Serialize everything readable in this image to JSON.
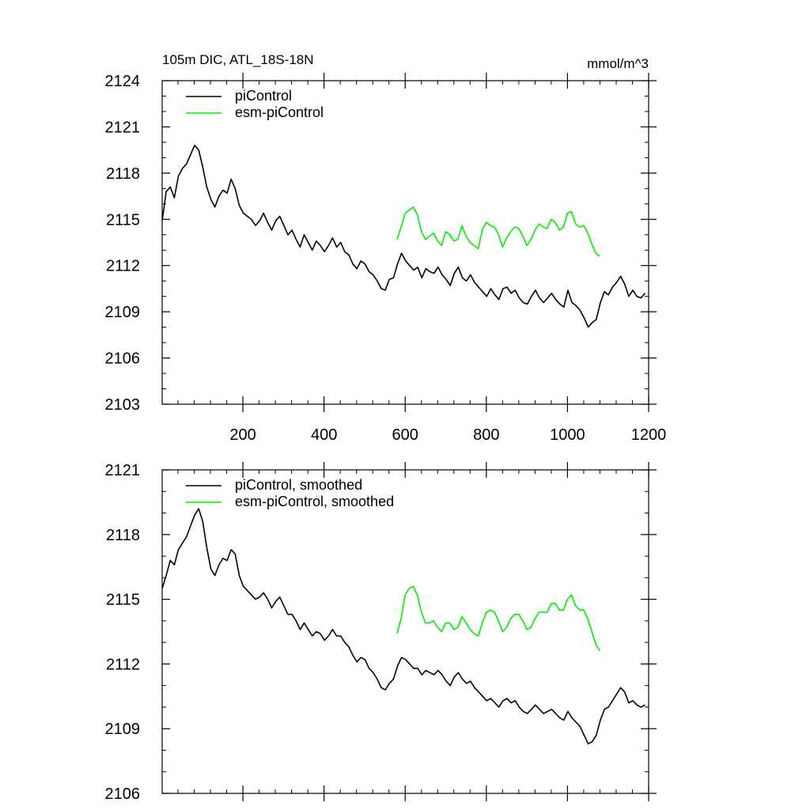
{
  "title": "105m DIC, ATL_18S-18N",
  "units": "mmol/m^3",
  "colors": {
    "piControl": "#000000",
    "esm_piControl": "#00ee00"
  },
  "chart_data": [
    {
      "type": "line",
      "title": "105m DIC, ATL_18S-18N",
      "units_label": "mmol/m^3",
      "xlim": [
        1,
        1200
      ],
      "ylim": [
        2103,
        2124
      ],
      "x_ticks": [
        200,
        400,
        600,
        800,
        1000,
        1200
      ],
      "y_ticks": [
        2103,
        2106,
        2109,
        2112,
        2115,
        2118,
        2121,
        2124
      ],
      "legend_position": "top-left",
      "grid": false,
      "series": [
        {
          "name": "piControl",
          "color": "#000000",
          "x_start": 1,
          "x_step": 10,
          "values": [
            2114.9,
            2116.8,
            2117.1,
            2116.4,
            2117.8,
            2118.3,
            2118.6,
            2119.2,
            2119.8,
            2119.5,
            2118.4,
            2117.1,
            2116.3,
            2115.8,
            2116.5,
            2116.9,
            2116.7,
            2117.6,
            2117.0,
            2115.9,
            2115.4,
            2115.2,
            2115.0,
            2114.6,
            2114.9,
            2115.4,
            2114.8,
            2114.3,
            2114.9,
            2115.2,
            2114.6,
            2114.0,
            2114.3,
            2113.7,
            2113.2,
            2114.0,
            2113.5,
            2113.0,
            2113.6,
            2113.3,
            2112.9,
            2113.3,
            2113.8,
            2113.2,
            2113.5,
            2112.9,
            2112.7,
            2112.1,
            2111.8,
            2112.3,
            2112.1,
            2111.6,
            2111.4,
            2111.0,
            2110.5,
            2110.4,
            2111.1,
            2111.2,
            2112.1,
            2112.8,
            2112.3,
            2112.0,
            2111.7,
            2111.9,
            2111.2,
            2111.8,
            2111.6,
            2111.5,
            2111.9,
            2111.4,
            2111.1,
            2110.7,
            2111.5,
            2111.9,
            2111.2,
            2111.0,
            2111.4,
            2110.9,
            2110.6,
            2110.3,
            2110.0,
            2110.5,
            2110.1,
            2109.8,
            2110.5,
            2110.6,
            2110.2,
            2110.4,
            2109.9,
            2109.6,
            2109.5,
            2110.0,
            2110.4,
            2109.9,
            2109.6,
            2109.9,
            2110.2,
            2109.8,
            2109.5,
            2109.3,
            2110.4,
            2109.6,
            2109.4,
            2109.1,
            2108.6,
            2108.0,
            2108.3,
            2108.5,
            2109.6,
            2110.3,
            2110.1,
            2110.6,
            2110.9,
            2111.3,
            2110.8,
            2110.0,
            2110.4,
            2110.0,
            2109.9,
            2110.2
          ]
        },
        {
          "name": "esm-piControl",
          "color": "#00ee00",
          "x_start": 580,
          "x_step": 10,
          "values": [
            2113.7,
            2114.5,
            2115.4,
            2115.6,
            2115.8,
            2115.3,
            2114.2,
            2113.7,
            2113.9,
            2114.1,
            2113.6,
            2113.3,
            2114.2,
            2114.0,
            2113.6,
            2113.7,
            2114.6,
            2113.9,
            2113.5,
            2113.3,
            2113.1,
            2114.3,
            2114.8,
            2114.6,
            2114.5,
            2114.0,
            2113.2,
            2113.8,
            2114.2,
            2114.5,
            2114.4,
            2113.9,
            2113.3,
            2113.7,
            2114.3,
            2114.7,
            2114.5,
            2114.4,
            2115.0,
            2114.8,
            2114.3,
            2114.5,
            2115.4,
            2115.5,
            2114.7,
            2114.5,
            2114.6,
            2114.1,
            2113.4,
            2112.8,
            2112.6
          ]
        }
      ]
    },
    {
      "type": "line",
      "xlim": [
        1,
        1200
      ],
      "ylim": [
        2106,
        2121
      ],
      "x_ticks": [
        200,
        400,
        600,
        800,
        1000,
        1200
      ],
      "y_ticks": [
        2106,
        2109,
        2112,
        2115,
        2118,
        2121
      ],
      "legend_position": "top-left",
      "grid": false,
      "series": [
        {
          "name": "piControl, smoothed",
          "color": "#000000",
          "x_start": 1,
          "x_step": 10,
          "values": [
            2115.5,
            2116.1,
            2116.8,
            2116.6,
            2117.3,
            2117.6,
            2117.9,
            2118.4,
            2118.9,
            2119.2,
            2118.6,
            2117.4,
            2116.4,
            2116.1,
            2116.6,
            2116.9,
            2116.8,
            2117.3,
            2117.1,
            2116.1,
            2115.6,
            2115.4,
            2115.2,
            2115.0,
            2115.1,
            2115.3,
            2115.0,
            2114.6,
            2114.9,
            2115.1,
            2114.7,
            2114.3,
            2114.3,
            2114.0,
            2113.6,
            2113.9,
            2113.6,
            2113.3,
            2113.5,
            2113.4,
            2113.1,
            2113.3,
            2113.6,
            2113.3,
            2113.3,
            2113.0,
            2112.8,
            2112.4,
            2112.1,
            2112.3,
            2112.2,
            2111.8,
            2111.6,
            2111.3,
            2110.9,
            2110.8,
            2111.1,
            2111.3,
            2111.9,
            2112.3,
            2112.2,
            2112.0,
            2111.8,
            2111.8,
            2111.5,
            2111.7,
            2111.6,
            2111.5,
            2111.7,
            2111.5,
            2111.2,
            2111.0,
            2111.4,
            2111.6,
            2111.3,
            2111.1,
            2111.2,
            2110.9,
            2110.7,
            2110.5,
            2110.3,
            2110.4,
            2110.2,
            2110.0,
            2110.3,
            2110.4,
            2110.2,
            2110.3,
            2110.0,
            2109.8,
            2109.7,
            2109.9,
            2110.1,
            2109.9,
            2109.7,
            2109.8,
            2109.9,
            2109.7,
            2109.5,
            2109.4,
            2109.8,
            2109.5,
            2109.3,
            2109.1,
            2108.7,
            2108.3,
            2108.4,
            2108.7,
            2109.4,
            2109.9,
            2110.0,
            2110.3,
            2110.6,
            2110.9,
            2110.7,
            2110.2,
            2110.3,
            2110.1,
            2110.0,
            2110.1
          ]
        },
        {
          "name": "esm-piControl, smoothed",
          "color": "#00ee00",
          "x_start": 580,
          "x_step": 10,
          "values": [
            2113.4,
            2114.1,
            2115.2,
            2115.5,
            2115.6,
            2115.2,
            2114.4,
            2113.9,
            2113.9,
            2114.0,
            2113.7,
            2113.5,
            2113.9,
            2113.9,
            2113.6,
            2113.7,
            2114.2,
            2113.9,
            2113.6,
            2113.4,
            2113.3,
            2113.9,
            2114.4,
            2114.5,
            2114.4,
            2114.0,
            2113.5,
            2113.7,
            2114.1,
            2114.3,
            2114.3,
            2114.0,
            2113.6,
            2113.7,
            2114.1,
            2114.4,
            2114.4,
            2114.4,
            2114.8,
            2114.8,
            2114.5,
            2114.5,
            2115.0,
            2115.2,
            2114.7,
            2114.5,
            2114.5,
            2114.1,
            2113.5,
            2112.9,
            2112.6
          ]
        }
      ]
    }
  ]
}
